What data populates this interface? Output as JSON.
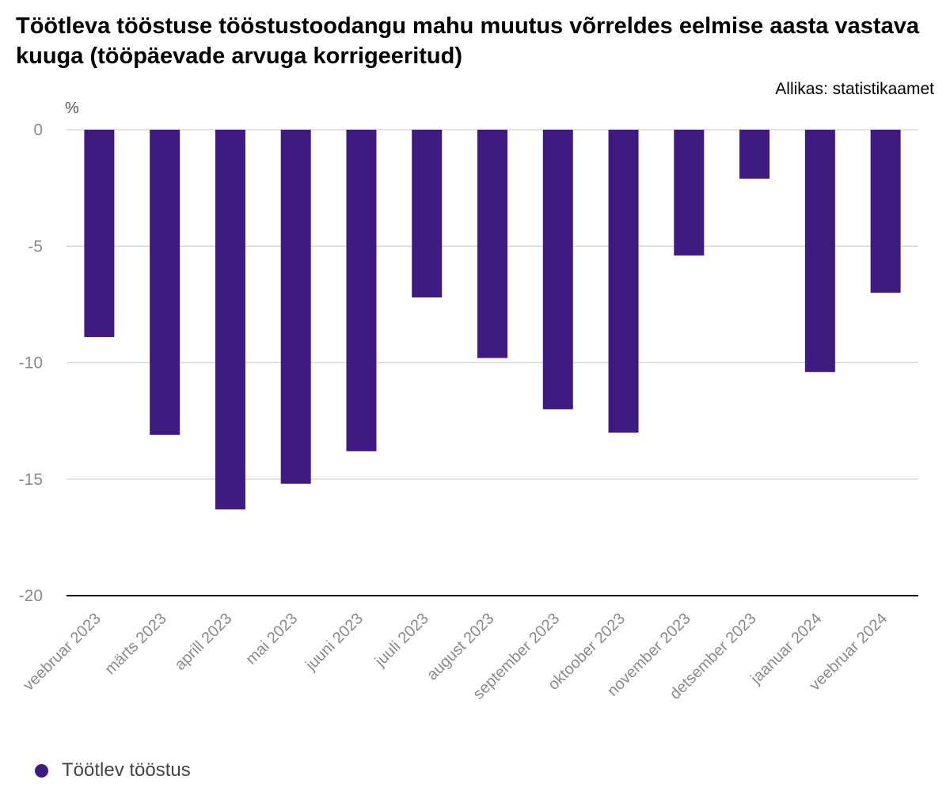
{
  "title": "Töötleva tööstuse tööstustoodangu mahu muutus võrreldes eelmise aasta vastava kuuga (tööpäevade arvuga korrigeeritud)",
  "source": "Allikas: statistikaamet",
  "colors": {
    "bar": "#3f1a80",
    "grid": "#d9d9d9",
    "axis": "#000000"
  },
  "chart_data": {
    "type": "bar",
    "title": "Töötleva tööstuse tööstustoodangu mahu muutus võrreldes eelmise aasta vastava kuuga (tööpäevade arvuga korrigeeritud)",
    "ylabel": "%",
    "xlabel": "",
    "ylim": [
      -20,
      0
    ],
    "yticks": [
      0,
      -5,
      -10,
      -15,
      -20
    ],
    "grid": true,
    "legend_position": "bottom-left",
    "categories": [
      "veebruar 2023",
      "märts 2023",
      "aprill 2023",
      "mai 2023",
      "juuni 2023",
      "juuli 2023",
      "august 2023",
      "september 2023",
      "oktoober 2023",
      "november 2023",
      "detsember 2023",
      "jaanuar 2024",
      "veebruar 2024"
    ],
    "series": [
      {
        "name": "Töötlev tööstus",
        "values": [
          -8.9,
          -13.1,
          -16.3,
          -15.2,
          -13.8,
          -7.2,
          -9.8,
          -12.0,
          -13.0,
          -5.4,
          -2.1,
          -10.4,
          -7.0
        ]
      }
    ]
  }
}
